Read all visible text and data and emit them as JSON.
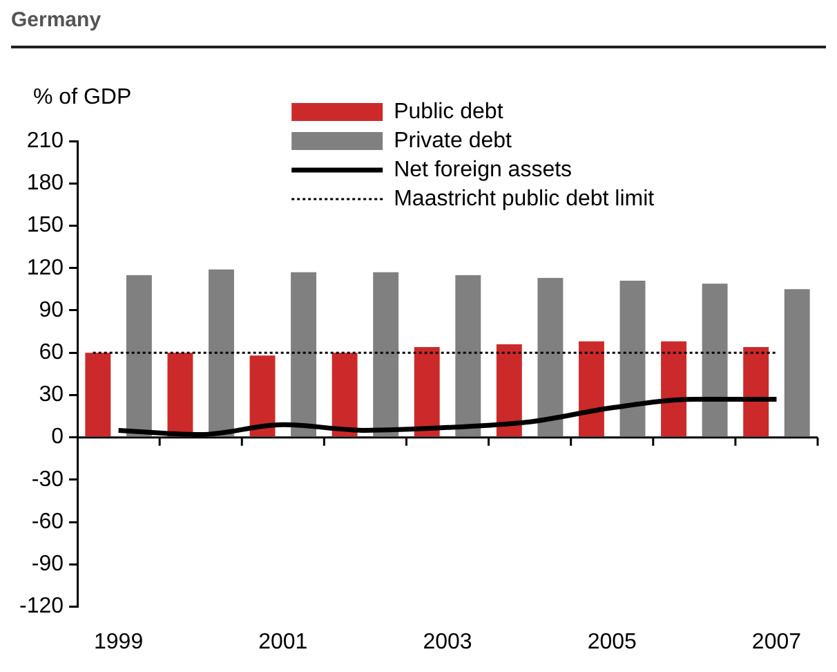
{
  "chart_data": {
    "type": "bar",
    "title": "Germany",
    "ylabel": "% of GDP",
    "categories": [
      "1999",
      null,
      "2001",
      null,
      "2003",
      null,
      "2005",
      null,
      "2007"
    ],
    "series": [
      {
        "name": "Public debt",
        "color": "#cc2a2a",
        "values": [
          60,
          60,
          58,
          60,
          64,
          66,
          68,
          68,
          64
        ]
      },
      {
        "name": "Private debt",
        "color": "#808080",
        "values": [
          115,
          119,
          117,
          117,
          115,
          113,
          111,
          109,
          105
        ]
      },
      {
        "name": "Net foreign assets",
        "type": "line",
        "color": "#000000",
        "values": [
          5,
          2,
          9,
          5,
          7,
          11,
          21,
          27,
          27
        ]
      }
    ],
    "ref_lines": [
      {
        "axis": "y",
        "value": 60,
        "label": "Maastricht public debt limit",
        "color": "#000000",
        "line_style": "dotted"
      }
    ],
    "ylim": [
      -120,
      210
    ],
    "yticks": [
      -120,
      -90,
      -60,
      -30,
      0,
      30,
      60,
      90,
      120,
      150,
      180,
      210
    ],
    "grid": false,
    "legend": "top",
    "marker": "none"
  }
}
